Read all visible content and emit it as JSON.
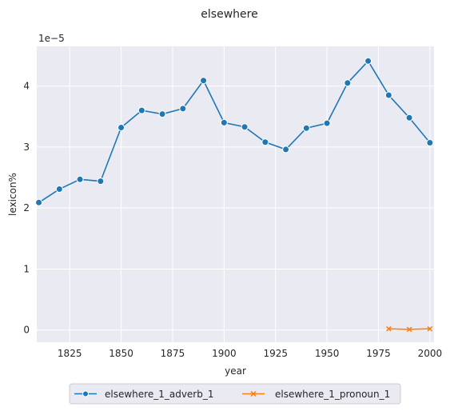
{
  "chart_data": {
    "type": "line",
    "title": "elsewhere",
    "xlabel": "year",
    "ylabel": "lexicon%",
    "y_scale_label": "1e−5",
    "xlim": [
      1809,
      2002
    ],
    "ylim": [
      -0.2,
      4.65
    ],
    "x_ticks": [
      1825,
      1850,
      1875,
      1900,
      1925,
      1950,
      1975,
      2000
    ],
    "y_ticks": [
      0,
      1,
      2,
      3,
      4
    ],
    "grid": true,
    "legend_position": "bottom-center",
    "series": [
      {
        "name": "elsewhere_1_adverb_1",
        "color": "#1f77b4",
        "marker": "circle",
        "x": [
          1810,
          1820,
          1830,
          1840,
          1850,
          1860,
          1870,
          1880,
          1890,
          1900,
          1910,
          1920,
          1930,
          1940,
          1950,
          1960,
          1970,
          1980,
          1990,
          2000
        ],
        "y": [
          2.09,
          2.31,
          2.47,
          2.44,
          3.32,
          3.6,
          3.54,
          3.63,
          4.09,
          3.4,
          3.33,
          3.08,
          2.96,
          3.31,
          3.39,
          4.05,
          4.41,
          3.85,
          3.48,
          3.07
        ]
      },
      {
        "name": "elsewhere_1_pronoun_1",
        "color": "#ff7f0e",
        "marker": "x",
        "x": [
          1980,
          1990,
          2000
        ],
        "y": [
          0.02,
          0.01,
          0.02
        ]
      }
    ]
  }
}
